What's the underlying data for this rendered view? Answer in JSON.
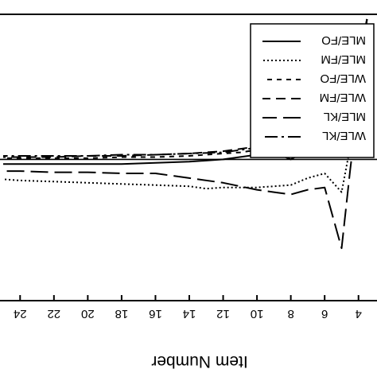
{
  "chart_data": {
    "type": "line",
    "orientation": "mirrored (rotated 180 degrees)",
    "title": "Item Number",
    "xlabel": "Item Number",
    "ylabel": "",
    "xlim": [
      3,
      25
    ],
    "ylim": [
      0,
      1
    ],
    "xticks": [
      4,
      6,
      8,
      10,
      12,
      14,
      16,
      18,
      20,
      22,
      24
    ],
    "xtick_labels": [
      "4",
      "6",
      "8",
      "10",
      "12",
      "14",
      "16",
      "18",
      "20",
      "22",
      "24"
    ],
    "reference_line": 0.6,
    "grid": false,
    "legend_position": "lower-right",
    "series": [
      {
        "name": "WLE/KL",
        "dash": "dash-dot",
        "x": [
          3.5,
          4.0,
          4.5,
          5.0,
          6.0,
          7.0,
          8.0,
          9.0,
          10.0,
          11.0,
          12.0,
          14.0,
          16.0,
          18.0,
          20.0,
          22.0,
          24.0,
          25.0
        ],
        "y": [
          0.0,
          0.2,
          0.3,
          0.38,
          0.45,
          0.49,
          0.515,
          0.535,
          0.55,
          0.56,
          0.57,
          0.575,
          0.58,
          0.58,
          0.585,
          0.585,
          0.585,
          0.585
        ]
      },
      {
        "name": "MLE/KL",
        "dash": "long-dash",
        "x": [
          3.5,
          4.0,
          4.5,
          5.0,
          6.0,
          7.0,
          8.0,
          9.0,
          10.0,
          12.0,
          14.0,
          16.0,
          18.0,
          20.0,
          22.0,
          24.0,
          25.0
        ],
        "y": [
          0.0,
          0.35,
          0.65,
          0.98,
          0.72,
          0.73,
          0.75,
          0.74,
          0.73,
          0.7,
          0.68,
          0.66,
          0.66,
          0.655,
          0.655,
          0.65,
          0.65
        ]
      },
      {
        "name": "WLE/FM",
        "dash": "medium-dash",
        "x": [
          3.5,
          4.0,
          4.5,
          5.0,
          6.0,
          7.0,
          8.0,
          9.0,
          10.0,
          11.0,
          12.0,
          14.0,
          16.0,
          18.0,
          20.0,
          22.0,
          24.0,
          25.0
        ],
        "y": [
          0.0,
          0.18,
          0.29,
          0.37,
          0.44,
          0.48,
          0.505,
          0.53,
          0.545,
          0.555,
          0.565,
          0.575,
          0.58,
          0.585,
          0.585,
          0.59,
          0.59,
          0.59
        ]
      },
      {
        "name": "WLE/FO",
        "dash": "short-dash",
        "x": [
          3.5,
          4.0,
          4.5,
          5.0,
          6.0,
          7.0,
          8.0,
          9.0,
          10.0,
          11.0,
          12.0,
          14.0,
          16.0,
          18.0,
          20.0,
          22.0,
          24.0,
          25.0
        ],
        "y": [
          0.03,
          0.22,
          0.31,
          0.39,
          0.46,
          0.5,
          0.525,
          0.545,
          0.56,
          0.57,
          0.575,
          0.585,
          0.59,
          0.59,
          0.595,
          0.595,
          0.595,
          0.595
        ]
      },
      {
        "name": "MLE/FM",
        "dash": "dotted",
        "x": [
          3.5,
          4.0,
          4.5,
          5.0,
          6.0,
          7.0,
          8.0,
          9.0,
          10.0,
          11.0,
          12.0,
          13.0,
          14.0,
          16.0,
          18.0,
          20.0,
          22.0,
          24.0,
          25.0
        ],
        "y": [
          0.0,
          0.3,
          0.55,
          0.74,
          0.66,
          0.68,
          0.71,
          0.715,
          0.72,
          0.72,
          0.72,
          0.725,
          0.715,
          0.71,
          0.705,
          0.7,
          0.695,
          0.69,
          0.685
        ]
      },
      {
        "name": "MLE/FO",
        "dash": "solid",
        "x": [
          3.5,
          4.0,
          4.5,
          5.0,
          6.0,
          7.0,
          8.0,
          9.0,
          10.0,
          12.0,
          14.0,
          16.0,
          18.0,
          20.0,
          22.0,
          24.0,
          25.0
        ],
        "y": [
          0.08,
          0.4,
          0.4,
          0.44,
          0.58,
          0.56,
          0.6,
          0.57,
          0.58,
          0.6,
          0.61,
          0.615,
          0.62,
          0.62,
          0.62,
          0.62,
          0.62
        ]
      }
    ]
  }
}
